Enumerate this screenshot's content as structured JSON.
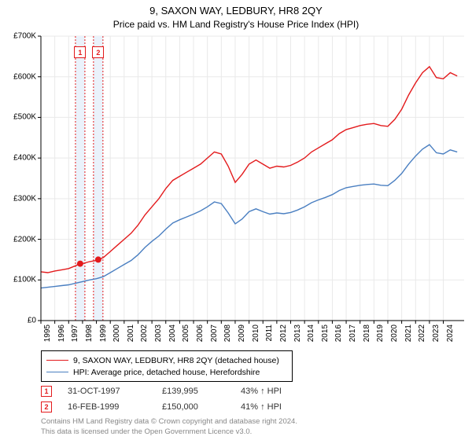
{
  "title": "9, SAXON WAY, LEDBURY, HR8 2QY",
  "subtitle": "Price paid vs. HM Land Registry's House Price Index (HPI)",
  "chart": {
    "type": "line",
    "background_color": "#ffffff",
    "grid_color": "#e9e9e9",
    "axis_color": "#000000",
    "font_family": "Arial",
    "label_fontsize": 10,
    "title_fontsize": 13,
    "subtitle_fontsize": 12,
    "x": {
      "min": 1995,
      "max": 2025.5,
      "ticks": [
        1995,
        1996,
        1997,
        1998,
        1999,
        2000,
        2001,
        2002,
        2003,
        2004,
        2005,
        2006,
        2007,
        2008,
        2009,
        2010,
        2011,
        2012,
        2013,
        2014,
        2015,
        2016,
        2017,
        2018,
        2019,
        2020,
        2021,
        2022,
        2023,
        2024
      ],
      "tick_labels": [
        "1995",
        "1996",
        "1997",
        "1998",
        "1999",
        "2000",
        "2001",
        "2002",
        "2003",
        "2004",
        "2005",
        "2006",
        "2007",
        "2008",
        "2009",
        "2010",
        "2011",
        "2012",
        "2013",
        "2014",
        "2015",
        "2016",
        "2017",
        "2018",
        "2019",
        "2020",
        "2021",
        "2022",
        "2023",
        "2024"
      ],
      "rotation": -90
    },
    "y": {
      "min": 0,
      "max": 700000,
      "ticks": [
        0,
        100000,
        200000,
        300000,
        400000,
        500000,
        600000,
        700000
      ],
      "tick_labels": [
        "£0",
        "£100K",
        "£200K",
        "£300K",
        "£400K",
        "£500K",
        "£600K",
        "£700K"
      ]
    },
    "series": [
      {
        "label": "9, SAXON WAY, LEDBURY, HR8 2QY (detached house)",
        "color": "#e31a1c",
        "line_width": 1.4,
        "xy": [
          [
            1995.0,
            120000
          ],
          [
            1995.5,
            118000
          ],
          [
            1996.0,
            122000
          ],
          [
            1996.5,
            125000
          ],
          [
            1997.0,
            128000
          ],
          [
            1997.5,
            135000
          ],
          [
            1997.83,
            139995
          ],
          [
            1998.0,
            140000
          ],
          [
            1998.5,
            145000
          ],
          [
            1999.0,
            148000
          ],
          [
            1999.13,
            150000
          ],
          [
            1999.5,
            155000
          ],
          [
            2000.0,
            170000
          ],
          [
            2000.5,
            185000
          ],
          [
            2001.0,
            200000
          ],
          [
            2001.5,
            215000
          ],
          [
            2002.0,
            235000
          ],
          [
            2002.5,
            260000
          ],
          [
            2003.0,
            280000
          ],
          [
            2003.5,
            300000
          ],
          [
            2004.0,
            325000
          ],
          [
            2004.5,
            345000
          ],
          [
            2005.0,
            355000
          ],
          [
            2005.5,
            365000
          ],
          [
            2006.0,
            375000
          ],
          [
            2006.5,
            385000
          ],
          [
            2007.0,
            400000
          ],
          [
            2007.5,
            415000
          ],
          [
            2008.0,
            410000
          ],
          [
            2008.5,
            380000
          ],
          [
            2009.0,
            340000
          ],
          [
            2009.5,
            360000
          ],
          [
            2010.0,
            385000
          ],
          [
            2010.5,
            395000
          ],
          [
            2011.0,
            385000
          ],
          [
            2011.5,
            375000
          ],
          [
            2012.0,
            380000
          ],
          [
            2012.5,
            378000
          ],
          [
            2013.0,
            382000
          ],
          [
            2013.5,
            390000
          ],
          [
            2014.0,
            400000
          ],
          [
            2014.5,
            415000
          ],
          [
            2015.0,
            425000
          ],
          [
            2015.5,
            435000
          ],
          [
            2016.0,
            445000
          ],
          [
            2016.5,
            460000
          ],
          [
            2017.0,
            470000
          ],
          [
            2017.5,
            475000
          ],
          [
            2018.0,
            480000
          ],
          [
            2018.5,
            483000
          ],
          [
            2019.0,
            485000
          ],
          [
            2019.5,
            480000
          ],
          [
            2020.0,
            478000
          ],
          [
            2020.5,
            495000
          ],
          [
            2021.0,
            520000
          ],
          [
            2021.5,
            555000
          ],
          [
            2022.0,
            585000
          ],
          [
            2022.5,
            610000
          ],
          [
            2023.0,
            625000
          ],
          [
            2023.5,
            598000
          ],
          [
            2024.0,
            595000
          ],
          [
            2024.5,
            610000
          ],
          [
            2025.0,
            602000
          ]
        ]
      },
      {
        "label": "HPI: Average price, detached house, Herefordshire",
        "color": "#4a7fc1",
        "line_width": 1.4,
        "xy": [
          [
            1995.0,
            80000
          ],
          [
            1995.5,
            82000
          ],
          [
            1996.0,
            84000
          ],
          [
            1996.5,
            86000
          ],
          [
            1997.0,
            88000
          ],
          [
            1997.5,
            92000
          ],
          [
            1998.0,
            96000
          ],
          [
            1998.5,
            100000
          ],
          [
            1999.0,
            103000
          ],
          [
            1999.5,
            108000
          ],
          [
            2000.0,
            118000
          ],
          [
            2000.5,
            128000
          ],
          [
            2001.0,
            138000
          ],
          [
            2001.5,
            148000
          ],
          [
            2002.0,
            162000
          ],
          [
            2002.5,
            180000
          ],
          [
            2003.0,
            195000
          ],
          [
            2003.5,
            208000
          ],
          [
            2004.0,
            225000
          ],
          [
            2004.5,
            240000
          ],
          [
            2005.0,
            248000
          ],
          [
            2005.5,
            255000
          ],
          [
            2006.0,
            262000
          ],
          [
            2006.5,
            270000
          ],
          [
            2007.0,
            280000
          ],
          [
            2007.5,
            292000
          ],
          [
            2008.0,
            288000
          ],
          [
            2008.5,
            265000
          ],
          [
            2009.0,
            238000
          ],
          [
            2009.5,
            250000
          ],
          [
            2010.0,
            268000
          ],
          [
            2010.5,
            275000
          ],
          [
            2011.0,
            268000
          ],
          [
            2011.5,
            262000
          ],
          [
            2012.0,
            265000
          ],
          [
            2012.5,
            263000
          ],
          [
            2013.0,
            266000
          ],
          [
            2013.5,
            272000
          ],
          [
            2014.0,
            280000
          ],
          [
            2014.5,
            290000
          ],
          [
            2015.0,
            297000
          ],
          [
            2015.5,
            303000
          ],
          [
            2016.0,
            310000
          ],
          [
            2016.5,
            320000
          ],
          [
            2017.0,
            327000
          ],
          [
            2017.5,
            330000
          ],
          [
            2018.0,
            333000
          ],
          [
            2018.5,
            335000
          ],
          [
            2019.0,
            336000
          ],
          [
            2019.5,
            333000
          ],
          [
            2020.0,
            332000
          ],
          [
            2020.5,
            345000
          ],
          [
            2021.0,
            362000
          ],
          [
            2021.5,
            385000
          ],
          [
            2022.0,
            405000
          ],
          [
            2022.5,
            422000
          ],
          [
            2023.0,
            433000
          ],
          [
            2023.5,
            413000
          ],
          [
            2024.0,
            410000
          ],
          [
            2024.5,
            420000
          ],
          [
            2025.0,
            415000
          ]
        ]
      }
    ],
    "sale_markers": [
      {
        "n": "1",
        "x": 1997.83,
        "y": 139995,
        "color": "#e31a1c",
        "band_color": "#eaf2fb"
      },
      {
        "n": "2",
        "x": 1999.13,
        "y": 150000,
        "color": "#e31a1c",
        "band_color": "#eaf2fb"
      }
    ],
    "marker_box_top_y": 660000
  },
  "legend": {
    "items": [
      {
        "color": "#e31a1c",
        "label": "9, SAXON WAY, LEDBURY, HR8 2QY (detached house)"
      },
      {
        "color": "#4a7fc1",
        "label": "HPI: Average price, detached house, Herefordshire"
      }
    ],
    "border_color": "#000000",
    "fontsize": 10.5
  },
  "sales": [
    {
      "n": "1",
      "color": "#e31a1c",
      "date": "31-OCT-1997",
      "price": "£139,995",
      "pct": "43% ↑ HPI"
    },
    {
      "n": "2",
      "color": "#e31a1c",
      "date": "16-FEB-1999",
      "price": "£150,000",
      "pct": "41% ↑ HPI"
    }
  ],
  "footer": {
    "line1": "Contains HM Land Registry data © Crown copyright and database right 2024.",
    "line2": "This data is licensed under the Open Government Licence v3.0.",
    "color": "#888888",
    "fontsize": 9.5
  }
}
